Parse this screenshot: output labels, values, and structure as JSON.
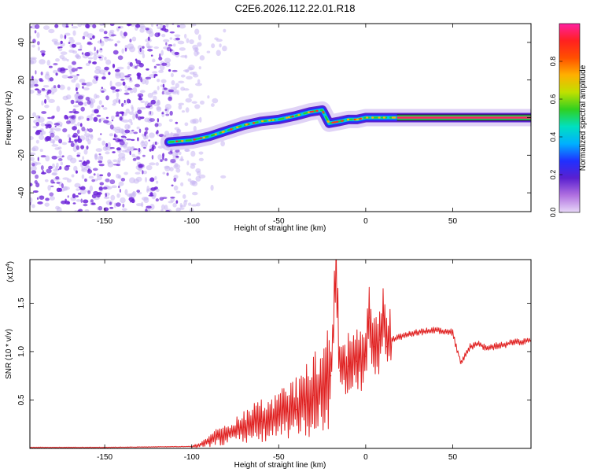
{
  "figure_title": "C2E6.2026.112.22.01.R18",
  "colors": {
    "purple": "#6a1fd8",
    "light_purple": "#c9b6f2",
    "snr_line": "#e02020",
    "axis": "#000000",
    "colorbar_stops": [
      "#e8d8f8",
      "#b070e0",
      "#5a20d0",
      "#2030ff",
      "#00b0ff",
      "#00e0c0",
      "#30d020",
      "#c0e000",
      "#ffb000",
      "#ff5000",
      "#ff2020",
      "#ff20a0"
    ]
  },
  "chart_data": [
    {
      "type": "heatmap",
      "name": "spectrogram",
      "xlabel": "Height of straight line (km)",
      "ylabel": "Frequency (Hz)",
      "xlim": [
        -193,
        95
      ],
      "ylim": [
        -50,
        50
      ],
      "xticks": [
        -150,
        -100,
        -50,
        0,
        50
      ],
      "yticks": [
        -40,
        -20,
        0,
        20,
        40
      ],
      "colorbar": {
        "label": "Normalized spectral amplitude",
        "range": [
          0,
          1
        ],
        "ticks": [
          "0.0",
          "0.2",
          "0.4",
          "0.6",
          "0.8"
        ]
      },
      "ridge": {
        "x": [
          -113,
          -100,
          -90,
          -80,
          -70,
          -60,
          -50,
          -40,
          -32,
          -25,
          -21,
          -15,
          -10,
          -5,
          0,
          10,
          18,
          95
        ],
        "y": [
          -13,
          -12,
          -10,
          -7,
          -4,
          -2,
          -1,
          1,
          3,
          4,
          -3,
          -2,
          -1,
          -1,
          0,
          0,
          0,
          0
        ]
      },
      "noise_region_x": [
        -193,
        -103
      ]
    },
    {
      "type": "line",
      "name": "snr",
      "xlabel": "Height of straight line (km)",
      "ylabel": "SNR (10 * v/v)",
      "y_multiplier": "(x10",
      "y_multiplier_exp": "4",
      "y_multiplier_close": ")",
      "xlim": [
        -193,
        95
      ],
      "ylim": [
        0,
        1.95
      ],
      "xticks": [
        -150,
        -100,
        -50,
        0,
        50
      ],
      "yticks": [
        0.5,
        1.0,
        1.5
      ],
      "ytick_labels": [
        "0.5",
        "1.0",
        "1.5"
      ],
      "series": [
        {
          "x": [
            -193,
            -150,
            -100,
            -95,
            -90,
            -85,
            -80,
            -75,
            -70,
            -65,
            -60,
            -55,
            -50,
            -45,
            -40,
            -35,
            -30,
            -25,
            -20,
            -17,
            -15,
            -10,
            -5,
            0,
            2,
            5,
            8,
            10,
            12,
            15,
            20,
            25,
            30,
            35,
            40,
            45,
            50,
            52,
            55,
            58,
            60,
            65,
            70,
            75,
            80,
            85,
            90,
            95
          ],
          "y": [
            0.01,
            0.01,
            0.02,
            0.04,
            0.07,
            0.12,
            0.15,
            0.18,
            0.22,
            0.25,
            0.28,
            0.3,
            0.35,
            0.38,
            0.4,
            0.45,
            0.55,
            0.62,
            0.75,
            1.95,
            0.8,
            0.85,
            0.9,
            0.95,
            1.35,
            1.05,
            1.12,
            1.37,
            1.05,
            1.12,
            1.15,
            1.18,
            1.2,
            1.21,
            1.22,
            1.21,
            1.2,
            1.05,
            0.88,
            1.0,
            1.05,
            1.08,
            1.03,
            1.06,
            1.07,
            1.1,
            1.1,
            1.12
          ]
        }
      ]
    }
  ]
}
